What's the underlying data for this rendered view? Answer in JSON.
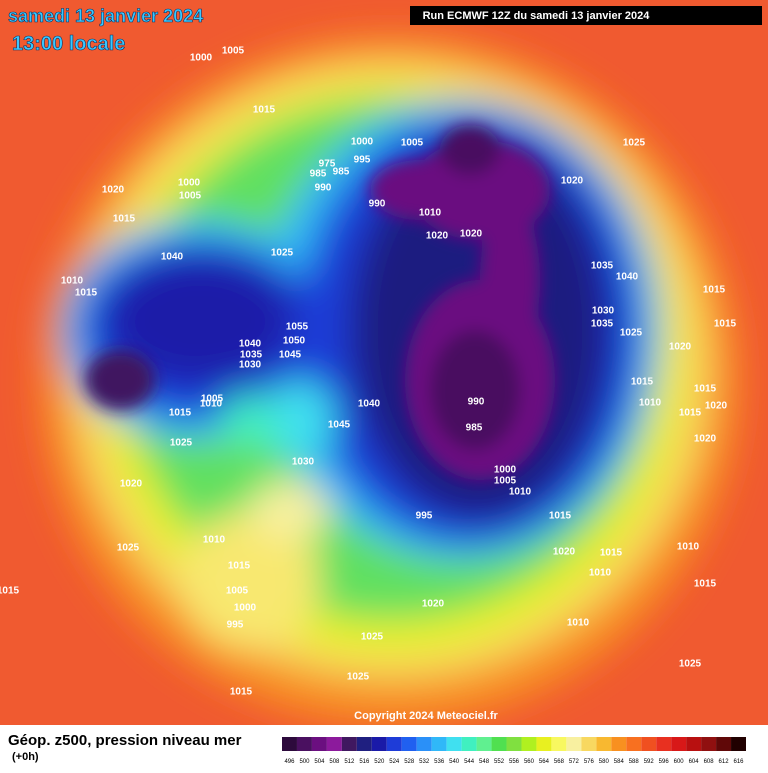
{
  "header": {
    "title": "samedi 13 janvier 2024",
    "subtitle": "13:00 locale",
    "run": "Run ECMWF 12Z du samedi 13 janvier 2024"
  },
  "copyright": "Copyright 2024 Meteociel.fr",
  "footer": {
    "title": "Géop. z500, pression niveau mer",
    "step": "(+0h)"
  },
  "legend": {
    "values": [
      496,
      500,
      504,
      508,
      512,
      516,
      520,
      524,
      528,
      532,
      536,
      540,
      544,
      548,
      552,
      556,
      560,
      564,
      568,
      572,
      576,
      580,
      584,
      588,
      592,
      596,
      600,
      604,
      608,
      612,
      616
    ],
    "colors": [
      "#2d0a3c",
      "#4a1060",
      "#6b0f80",
      "#8c1a9c",
      "#401860",
      "#1f1f80",
      "#1a1aa8",
      "#1e3cd8",
      "#2060f0",
      "#2a90f8",
      "#30b8f8",
      "#40e0f0",
      "#40f0c0",
      "#60f090",
      "#50e050",
      "#80e040",
      "#b0f020",
      "#e8f020",
      "#f8f860",
      "#f8f0a0",
      "#f8d860",
      "#f8b830",
      "#f89020",
      "#f87020",
      "#f05020",
      "#e83020",
      "#d81818",
      "#b81010",
      "#901010",
      "#600808",
      "#200000"
    ]
  },
  "isobar_labels": [
    1005,
    1000,
    1015,
    1020,
    1015,
    1005,
    1000,
    995,
    990,
    985,
    975,
    985,
    990,
    1000,
    1005,
    1010,
    1020,
    1020,
    1040,
    1025,
    1010,
    1015,
    1055,
    1050,
    1045,
    1040,
    1035,
    1030,
    1005,
    1010,
    1015,
    1025,
    1030,
    1040,
    1045,
    1020,
    1010,
    1015,
    1005,
    1000,
    995,
    990,
    995,
    985,
    1000,
    1005,
    1010,
    1015,
    1020,
    1015,
    1010,
    1020,
    1025,
    1025,
    1035,
    1040,
    1030,
    1035,
    1025,
    1020,
    1015,
    1015,
    1020,
    1010,
    1015,
    1020,
    1015,
    1015,
    1025,
    1020,
    1010,
    1025,
    1015,
    1025,
    1010,
    1015,
    1015
  ]
}
